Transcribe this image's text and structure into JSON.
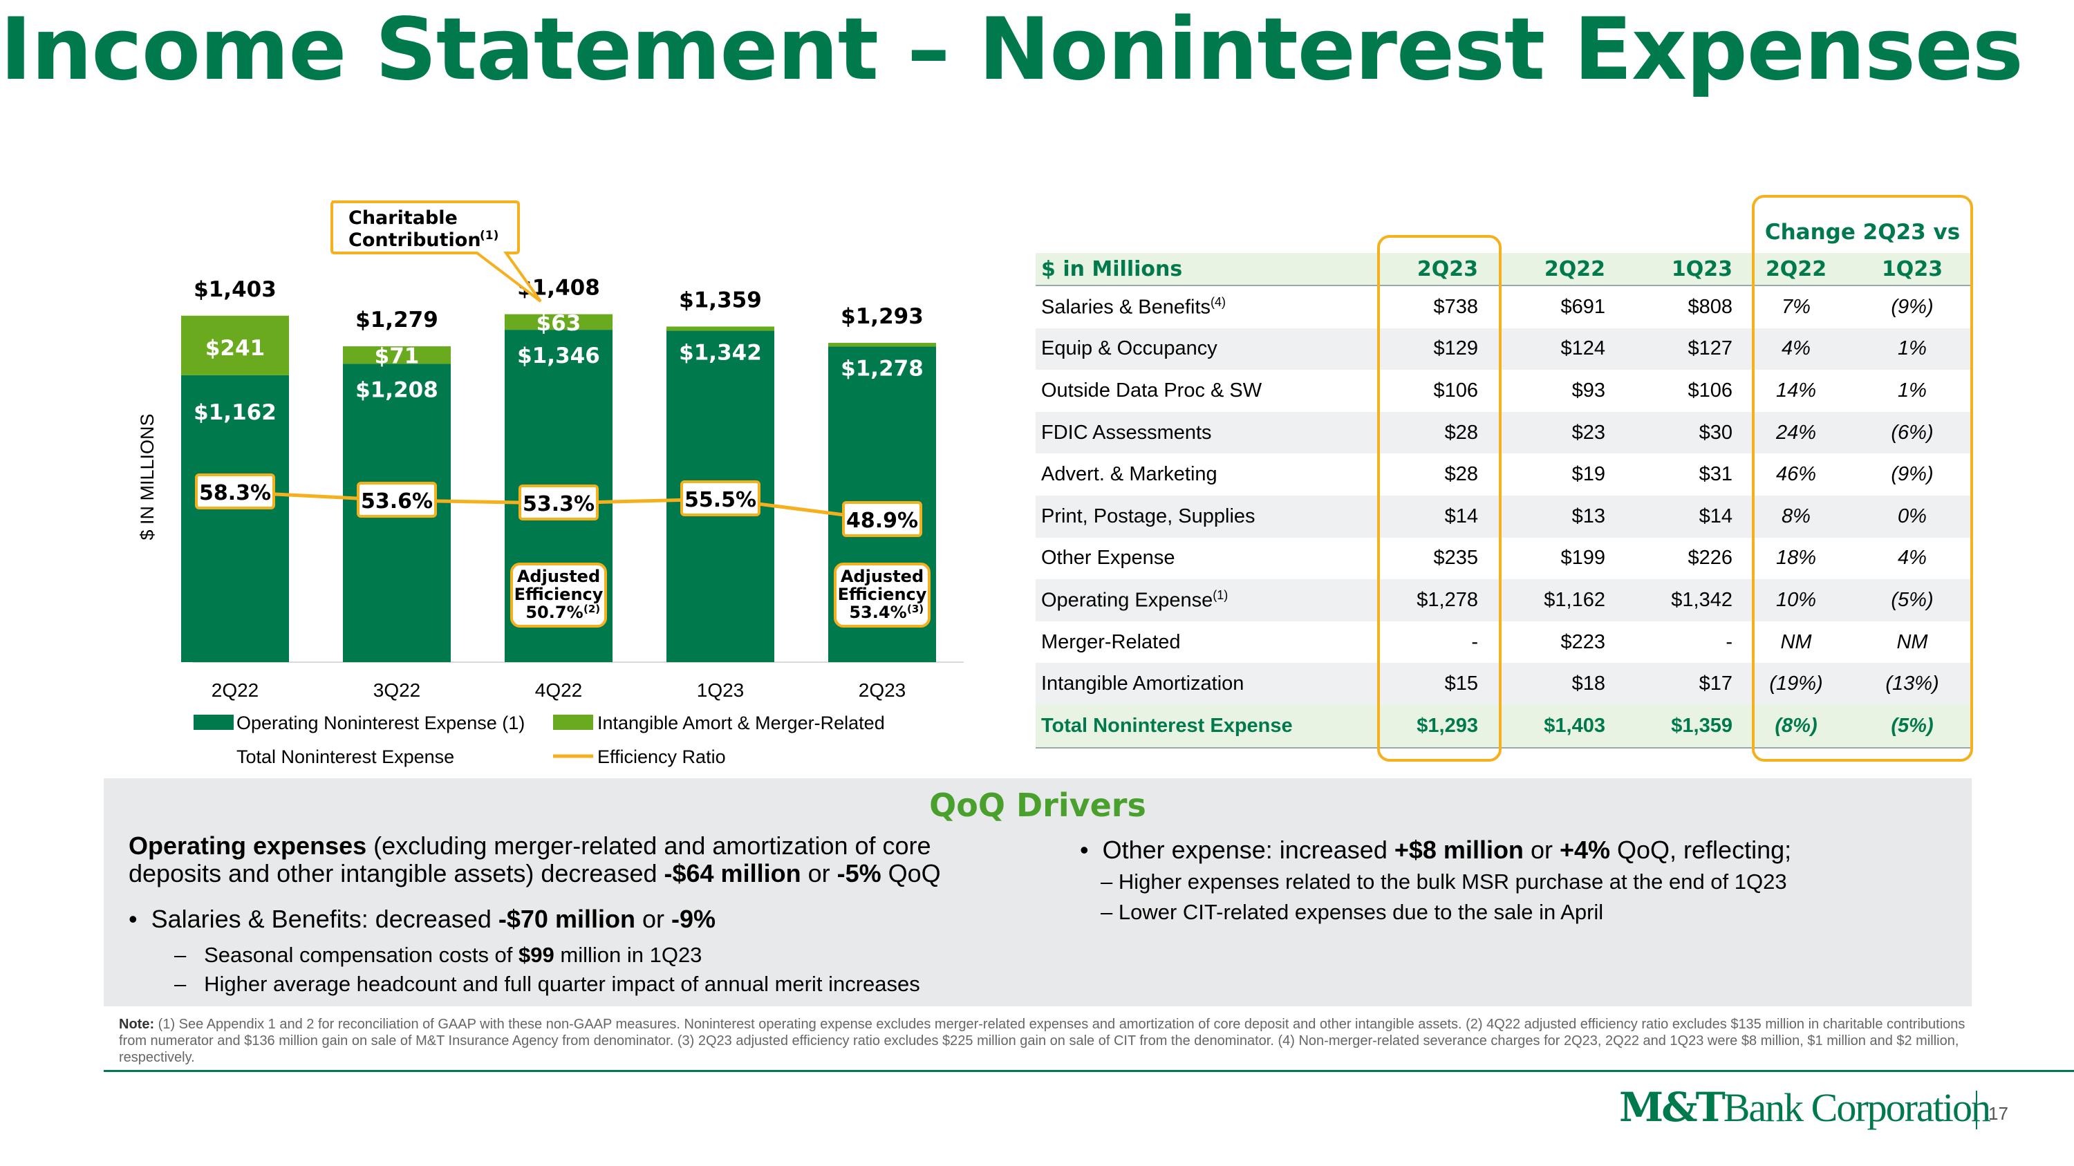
{
  "title": "Income Statement – Noninterest Expenses",
  "colors": {
    "brand_green": "#007a4d",
    "operating_bar": "#007a4d",
    "intangible_bar": "#6aaa1e",
    "efficiency_line": "#f5b01e",
    "highlight_box": "#f5b01e"
  },
  "chart_data": {
    "type": "bar",
    "stacked": true,
    "categories": [
      "2Q22",
      "3Q22",
      "4Q22",
      "1Q23",
      "2Q23"
    ],
    "ylabel": "$ IN MILLIONS",
    "series": [
      {
        "name": "Operating Noninterest Expense (1)",
        "values": [
          1162,
          1208,
          1346,
          1342,
          1278
        ],
        "labels": [
          "$1,162",
          "$1,208",
          "$1,346",
          "$1,342",
          "$1,278"
        ]
      },
      {
        "name": "Intangible Amort & Merger-Related",
        "values": [
          241,
          71,
          63,
          17,
          15
        ],
        "labels": [
          "$241",
          "$71",
          "$63",
          "",
          ""
        ]
      }
    ],
    "totals": {
      "name": "Total Noninterest Expense",
      "values": [
        1403,
        1279,
        1408,
        1359,
        1293
      ],
      "labels": [
        "$1,403",
        "$1,279",
        "$1,408",
        "$1,359",
        "$1,293"
      ]
    },
    "efficiency_ratio": {
      "name": "Efficiency Ratio",
      "values": [
        58.3,
        53.6,
        53.3,
        55.5,
        48.9
      ],
      "labels": [
        "58.3%",
        "53.6%",
        "53.3%",
        "55.5%",
        "48.9%"
      ]
    },
    "ylim": [
      0,
      1450
    ],
    "annotations": [
      {
        "category": "4Q22",
        "line1": "Charitable",
        "line2": "Contribution",
        "sup": "(1)"
      },
      {
        "category": "4Q22",
        "line1": "Adjusted",
        "line2": "Efficiency",
        "line3": "50.7%",
        "sup": "(2)"
      },
      {
        "category": "2Q23",
        "line1": "Adjusted",
        "line2": "Efficiency",
        "line3": "53.4%",
        "sup": "(3)"
      }
    ],
    "legend": [
      {
        "label": "Operating Noninterest Expense (1)",
        "kind": "box",
        "color": "#007a4d"
      },
      {
        "label": "Intangible Amort & Merger-Related",
        "kind": "box",
        "color": "#6aaa1e"
      },
      {
        "label": "Total Noninterest Expense",
        "kind": "none",
        "color": ""
      },
      {
        "label": "Efficiency Ratio",
        "kind": "line",
        "color": "#f5b01e"
      }
    ]
  },
  "table": {
    "change_header": "Change 2Q23 vs",
    "columns": [
      "$ in Millions",
      "2Q23",
      "2Q22",
      "1Q23",
      "2Q22",
      "1Q23"
    ],
    "rows": [
      {
        "label": "Salaries & Benefits",
        "sup": "(4)",
        "q2_23": "$738",
        "q2_22": "$691",
        "q1_23": "$808",
        "chg_q2_22": "7%",
        "chg_q1_23": "(9%)"
      },
      {
        "label": "Equip & Occupancy",
        "sup": "",
        "q2_23": "$129",
        "q2_22": "$124",
        "q1_23": "$127",
        "chg_q2_22": "4%",
        "chg_q1_23": "1%"
      },
      {
        "label": "Outside Data Proc & SW",
        "sup": "",
        "q2_23": "$106",
        "q2_22": "$93",
        "q1_23": "$106",
        "chg_q2_22": "14%",
        "chg_q1_23": "1%"
      },
      {
        "label": "FDIC Assessments",
        "sup": "",
        "q2_23": "$28",
        "q2_22": "$23",
        "q1_23": "$30",
        "chg_q2_22": "24%",
        "chg_q1_23": "(6%)"
      },
      {
        "label": "Advert. & Marketing",
        "sup": "",
        "q2_23": "$28",
        "q2_22": "$19",
        "q1_23": "$31",
        "chg_q2_22": "46%",
        "chg_q1_23": "(9%)"
      },
      {
        "label": "Print, Postage, Supplies",
        "sup": "",
        "q2_23": "$14",
        "q2_22": "$13",
        "q1_23": "$14",
        "chg_q2_22": "8%",
        "chg_q1_23": "0%"
      },
      {
        "label": "Other Expense",
        "sup": "",
        "q2_23": "$235",
        "q2_22": "$199",
        "q1_23": "$226",
        "chg_q2_22": "18%",
        "chg_q1_23": "4%"
      },
      {
        "label": "Operating Expense",
        "sup": "(1)",
        "q2_23": "$1,278",
        "q2_22": "$1,162",
        "q1_23": "$1,342",
        "chg_q2_22": "10%",
        "chg_q1_23": "(5%)"
      },
      {
        "label": "Merger-Related",
        "sup": "",
        "q2_23": "-",
        "q2_22": "$223",
        "q1_23": "-",
        "chg_q2_22": "NM",
        "chg_q1_23": "NM"
      },
      {
        "label": "Intangible Amortization",
        "sup": "",
        "q2_23": "$15",
        "q2_22": "$18",
        "q1_23": "$17",
        "chg_q2_22": "(19%)",
        "chg_q1_23": "(13%)"
      }
    ],
    "total": {
      "label": "Total Noninterest Expense",
      "q2_23": "$1,293",
      "q2_22": "$1,403",
      "q1_23": "$1,359",
      "chg_q2_22": "(8%)",
      "chg_q1_23": "(5%)"
    }
  },
  "drivers": {
    "title": "QoQ Drivers",
    "left_lead_bold": "Operating expenses",
    "left_lead_rest1": " (excluding merger-related and amortization of core",
    "left_lead_rest2a": "deposits and other intangible assets) decreased ",
    "left_lead_amt": "-$64 million",
    "left_lead_or": " or ",
    "left_lead_pct": "-5%",
    "left_lead_end": " QoQ",
    "sal_prefix": "Salaries & Benefits: decreased ",
    "sal_amt": "-$70 million",
    "sal_or": " or ",
    "sal_pct": "-9%",
    "sal_sub1_pre": "Seasonal compensation costs of ",
    "sal_sub1_amt": "$99",
    "sal_sub1_post": " million in 1Q23",
    "sal_sub2": "Higher average headcount and full quarter impact of annual merit increases",
    "oth_prefix": "Other expense: increased ",
    "oth_amt": "+$8 million",
    "oth_or": " or ",
    "oth_pct": "+4%",
    "oth_post": " QoQ, reflecting;",
    "oth_sub1": "– Higher expenses related to the bulk MSR purchase at the end of 1Q23",
    "oth_sub2": "– Lower CIT-related expenses due to the sale in April"
  },
  "note_label": "Note:",
  "note_text": " (1) See Appendix 1 and 2 for reconciliation of GAAP with these non-GAAP measures. Noninterest operating expense excludes merger-related expenses and amortization of core deposit and other intangible assets. (2) 4Q22 adjusted efficiency ratio excludes $135 million in charitable contributions from numerator and $136 million gain on sale of M&T Insurance Agency from denominator. (3) 2Q23 adjusted efficiency ratio excludes $225 million gain on sale of CIT from the denominator. (4) Non-merger-related severance charges for 2Q23, 2Q22 and 1Q23 were $8 million, $1 million and $2 million, respectively.",
  "logo": {
    "brand": "M&T",
    "rest": "Bank Corporation"
  },
  "page_number": "17"
}
